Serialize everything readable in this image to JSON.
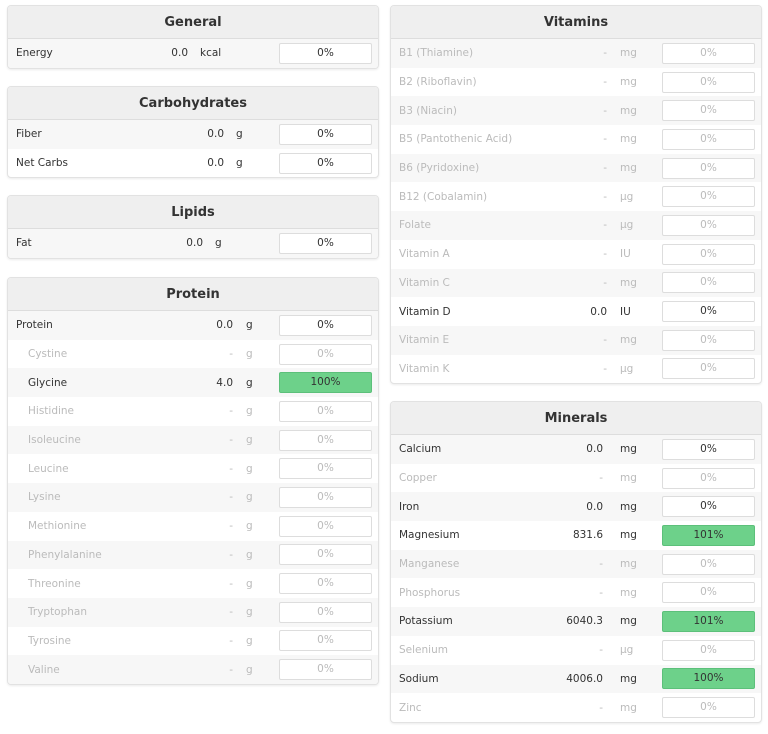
{
  "panels": [
    {
      "id": "general",
      "title": "General",
      "val_end": 180,
      "unit_x": 192,
      "left": 7,
      "top": 5,
      "rows": [
        {
          "name": "Energy",
          "value": "0.0",
          "unit": "kcal",
          "pct": "0%",
          "dim": false
        }
      ]
    },
    {
      "id": "carbohydrates",
      "title": "Carbohydrates",
      "val_end": 216,
      "unit_x": 228,
      "left": 7,
      "top": 86,
      "rows": [
        {
          "name": "Fiber",
          "value": "0.0",
          "unit": "g",
          "pct": "0%",
          "dim": false
        },
        {
          "name": "Net Carbs",
          "value": "0.0",
          "unit": "g",
          "pct": "0%",
          "dim": false
        }
      ]
    },
    {
      "id": "lipids",
      "title": "Lipids",
      "val_end": 195,
      "unit_x": 207,
      "left": 7,
      "top": 195,
      "rows": [
        {
          "name": "Fat",
          "value": "0.0",
          "unit": "g",
          "pct": "0%",
          "dim": false
        }
      ]
    },
    {
      "id": "protein",
      "title": "Protein",
      "val_end": 225,
      "unit_x": 238,
      "left": 7,
      "top": 277,
      "rows": [
        {
          "name": "Protein",
          "value": "0.0",
          "unit": "g",
          "pct": "0%",
          "dim": false
        },
        {
          "name": "Cystine",
          "value": "-",
          "unit": "g",
          "pct": "0%",
          "dim": true,
          "sub": true
        },
        {
          "name": "Glycine",
          "value": "4.0",
          "unit": "g",
          "pct": "100%",
          "dim": false,
          "sub": true,
          "full": true
        },
        {
          "name": "Histidine",
          "value": "-",
          "unit": "g",
          "pct": "0%",
          "dim": true,
          "sub": true
        },
        {
          "name": "Isoleucine",
          "value": "-",
          "unit": "g",
          "pct": "0%",
          "dim": true,
          "sub": true
        },
        {
          "name": "Leucine",
          "value": "-",
          "unit": "g",
          "pct": "0%",
          "dim": true,
          "sub": true
        },
        {
          "name": "Lysine",
          "value": "-",
          "unit": "g",
          "pct": "0%",
          "dim": true,
          "sub": true
        },
        {
          "name": "Methionine",
          "value": "-",
          "unit": "g",
          "pct": "0%",
          "dim": true,
          "sub": true
        },
        {
          "name": "Phenylalanine",
          "value": "-",
          "unit": "g",
          "pct": "0%",
          "dim": true,
          "sub": true
        },
        {
          "name": "Threonine",
          "value": "-",
          "unit": "g",
          "pct": "0%",
          "dim": true,
          "sub": true
        },
        {
          "name": "Tryptophan",
          "value": "-",
          "unit": "g",
          "pct": "0%",
          "dim": true,
          "sub": true
        },
        {
          "name": "Tyrosine",
          "value": "-",
          "unit": "g",
          "pct": "0%",
          "dim": true,
          "sub": true
        },
        {
          "name": "Valine",
          "value": "-",
          "unit": "g",
          "pct": "0%",
          "dim": true,
          "sub": true
        }
      ]
    },
    {
      "id": "vitamins",
      "title": "Vitamins",
      "val_end": 216,
      "unit_x": 229,
      "left": 390,
      "top": 5,
      "rows": [
        {
          "name": "B1 (Thiamine)",
          "value": "-",
          "unit": "mg",
          "pct": "0%",
          "dim": true
        },
        {
          "name": "B2 (Riboflavin)",
          "value": "-",
          "unit": "mg",
          "pct": "0%",
          "dim": true
        },
        {
          "name": "B3 (Niacin)",
          "value": "-",
          "unit": "mg",
          "pct": "0%",
          "dim": true
        },
        {
          "name": "B5 (Pantothenic Acid)",
          "value": "-",
          "unit": "mg",
          "pct": "0%",
          "dim": true
        },
        {
          "name": "B6 (Pyridoxine)",
          "value": "-",
          "unit": "mg",
          "pct": "0%",
          "dim": true
        },
        {
          "name": "B12 (Cobalamin)",
          "value": "-",
          "unit": "µg",
          "pct": "0%",
          "dim": true
        },
        {
          "name": "Folate",
          "value": "-",
          "unit": "µg",
          "pct": "0%",
          "dim": true
        },
        {
          "name": "Vitamin A",
          "value": "-",
          "unit": "IU",
          "pct": "0%",
          "dim": true
        },
        {
          "name": "Vitamin C",
          "value": "-",
          "unit": "mg",
          "pct": "0%",
          "dim": true
        },
        {
          "name": "Vitamin D",
          "value": "0.0",
          "unit": "IU",
          "pct": "0%",
          "dim": false
        },
        {
          "name": "Vitamin E",
          "value": "-",
          "unit": "mg",
          "pct": "0%",
          "dim": true
        },
        {
          "name": "Vitamin K",
          "value": "-",
          "unit": "µg",
          "pct": "0%",
          "dim": true
        }
      ]
    },
    {
      "id": "minerals",
      "title": "Minerals",
      "val_end": 212,
      "unit_x": 229,
      "left": 390,
      "top": 401,
      "rows": [
        {
          "name": "Calcium",
          "value": "0.0",
          "unit": "mg",
          "pct": "0%",
          "dim": false
        },
        {
          "name": "Copper",
          "value": "-",
          "unit": "mg",
          "pct": "0%",
          "dim": true
        },
        {
          "name": "Iron",
          "value": "0.0",
          "unit": "mg",
          "pct": "0%",
          "dim": false
        },
        {
          "name": "Magnesium",
          "value": "831.6",
          "unit": "mg",
          "pct": "101%",
          "dim": false,
          "full": true
        },
        {
          "name": "Manganese",
          "value": "-",
          "unit": "mg",
          "pct": "0%",
          "dim": true
        },
        {
          "name": "Phosphorus",
          "value": "-",
          "unit": "mg",
          "pct": "0%",
          "dim": true
        },
        {
          "name": "Potassium",
          "value": "6040.3",
          "unit": "mg",
          "pct": "101%",
          "dim": false,
          "full": true
        },
        {
          "name": "Selenium",
          "value": "-",
          "unit": "µg",
          "pct": "0%",
          "dim": true
        },
        {
          "name": "Sodium",
          "value": "4006.0",
          "unit": "mg",
          "pct": "100%",
          "dim": false,
          "full": true
        },
        {
          "name": "Zinc",
          "value": "-",
          "unit": "mg",
          "pct": "0%",
          "dim": true
        }
      ]
    }
  ],
  "colors": {
    "full_bar": "#6dd18a",
    "header_bg": "#efefef",
    "dim_text": "#bbbbbb"
  }
}
